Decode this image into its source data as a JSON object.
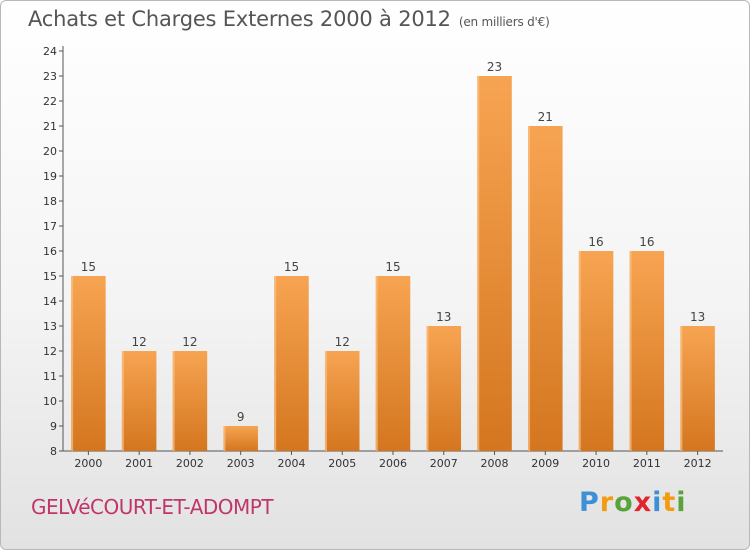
{
  "header": {
    "title": "Achats et Charges Externes 2000 à 2012",
    "subtitle": "(en milliers d'€)"
  },
  "footer": {
    "commune": "GELVéCOURT-ET-ADOMPT",
    "logo_letters": [
      {
        "char": "P",
        "color": "#3d8fd6"
      },
      {
        "char": "r",
        "color": "#f39c12"
      },
      {
        "char": "o",
        "color": "#5aa33b"
      },
      {
        "char": "x",
        "color": "#e0262c"
      },
      {
        "char": "i",
        "color": "#3d8fd6"
      },
      {
        "char": "t",
        "color": "#f39c12"
      },
      {
        "char": "i",
        "color": "#5aa33b"
      }
    ]
  },
  "chart_data": {
    "type": "bar",
    "title": "Achats et Charges Externes 2000 à 2012",
    "subtitle": "(en milliers d'€)",
    "categories": [
      "2000",
      "2001",
      "2002",
      "2003",
      "2004",
      "2005",
      "2006",
      "2007",
      "2008",
      "2009",
      "2010",
      "2011",
      "2012"
    ],
    "values": [
      15,
      12,
      12,
      9,
      15,
      12,
      15,
      13,
      23,
      21,
      16,
      16,
      13
    ],
    "ylim": [
      8,
      24
    ],
    "yticks": [
      8,
      9,
      10,
      11,
      12,
      13,
      14,
      15,
      16,
      17,
      18,
      19,
      20,
      21,
      22,
      23,
      24
    ],
    "grid": false,
    "bar_color_top": "#f7a452",
    "bar_color_bottom": "#d4761f"
  }
}
